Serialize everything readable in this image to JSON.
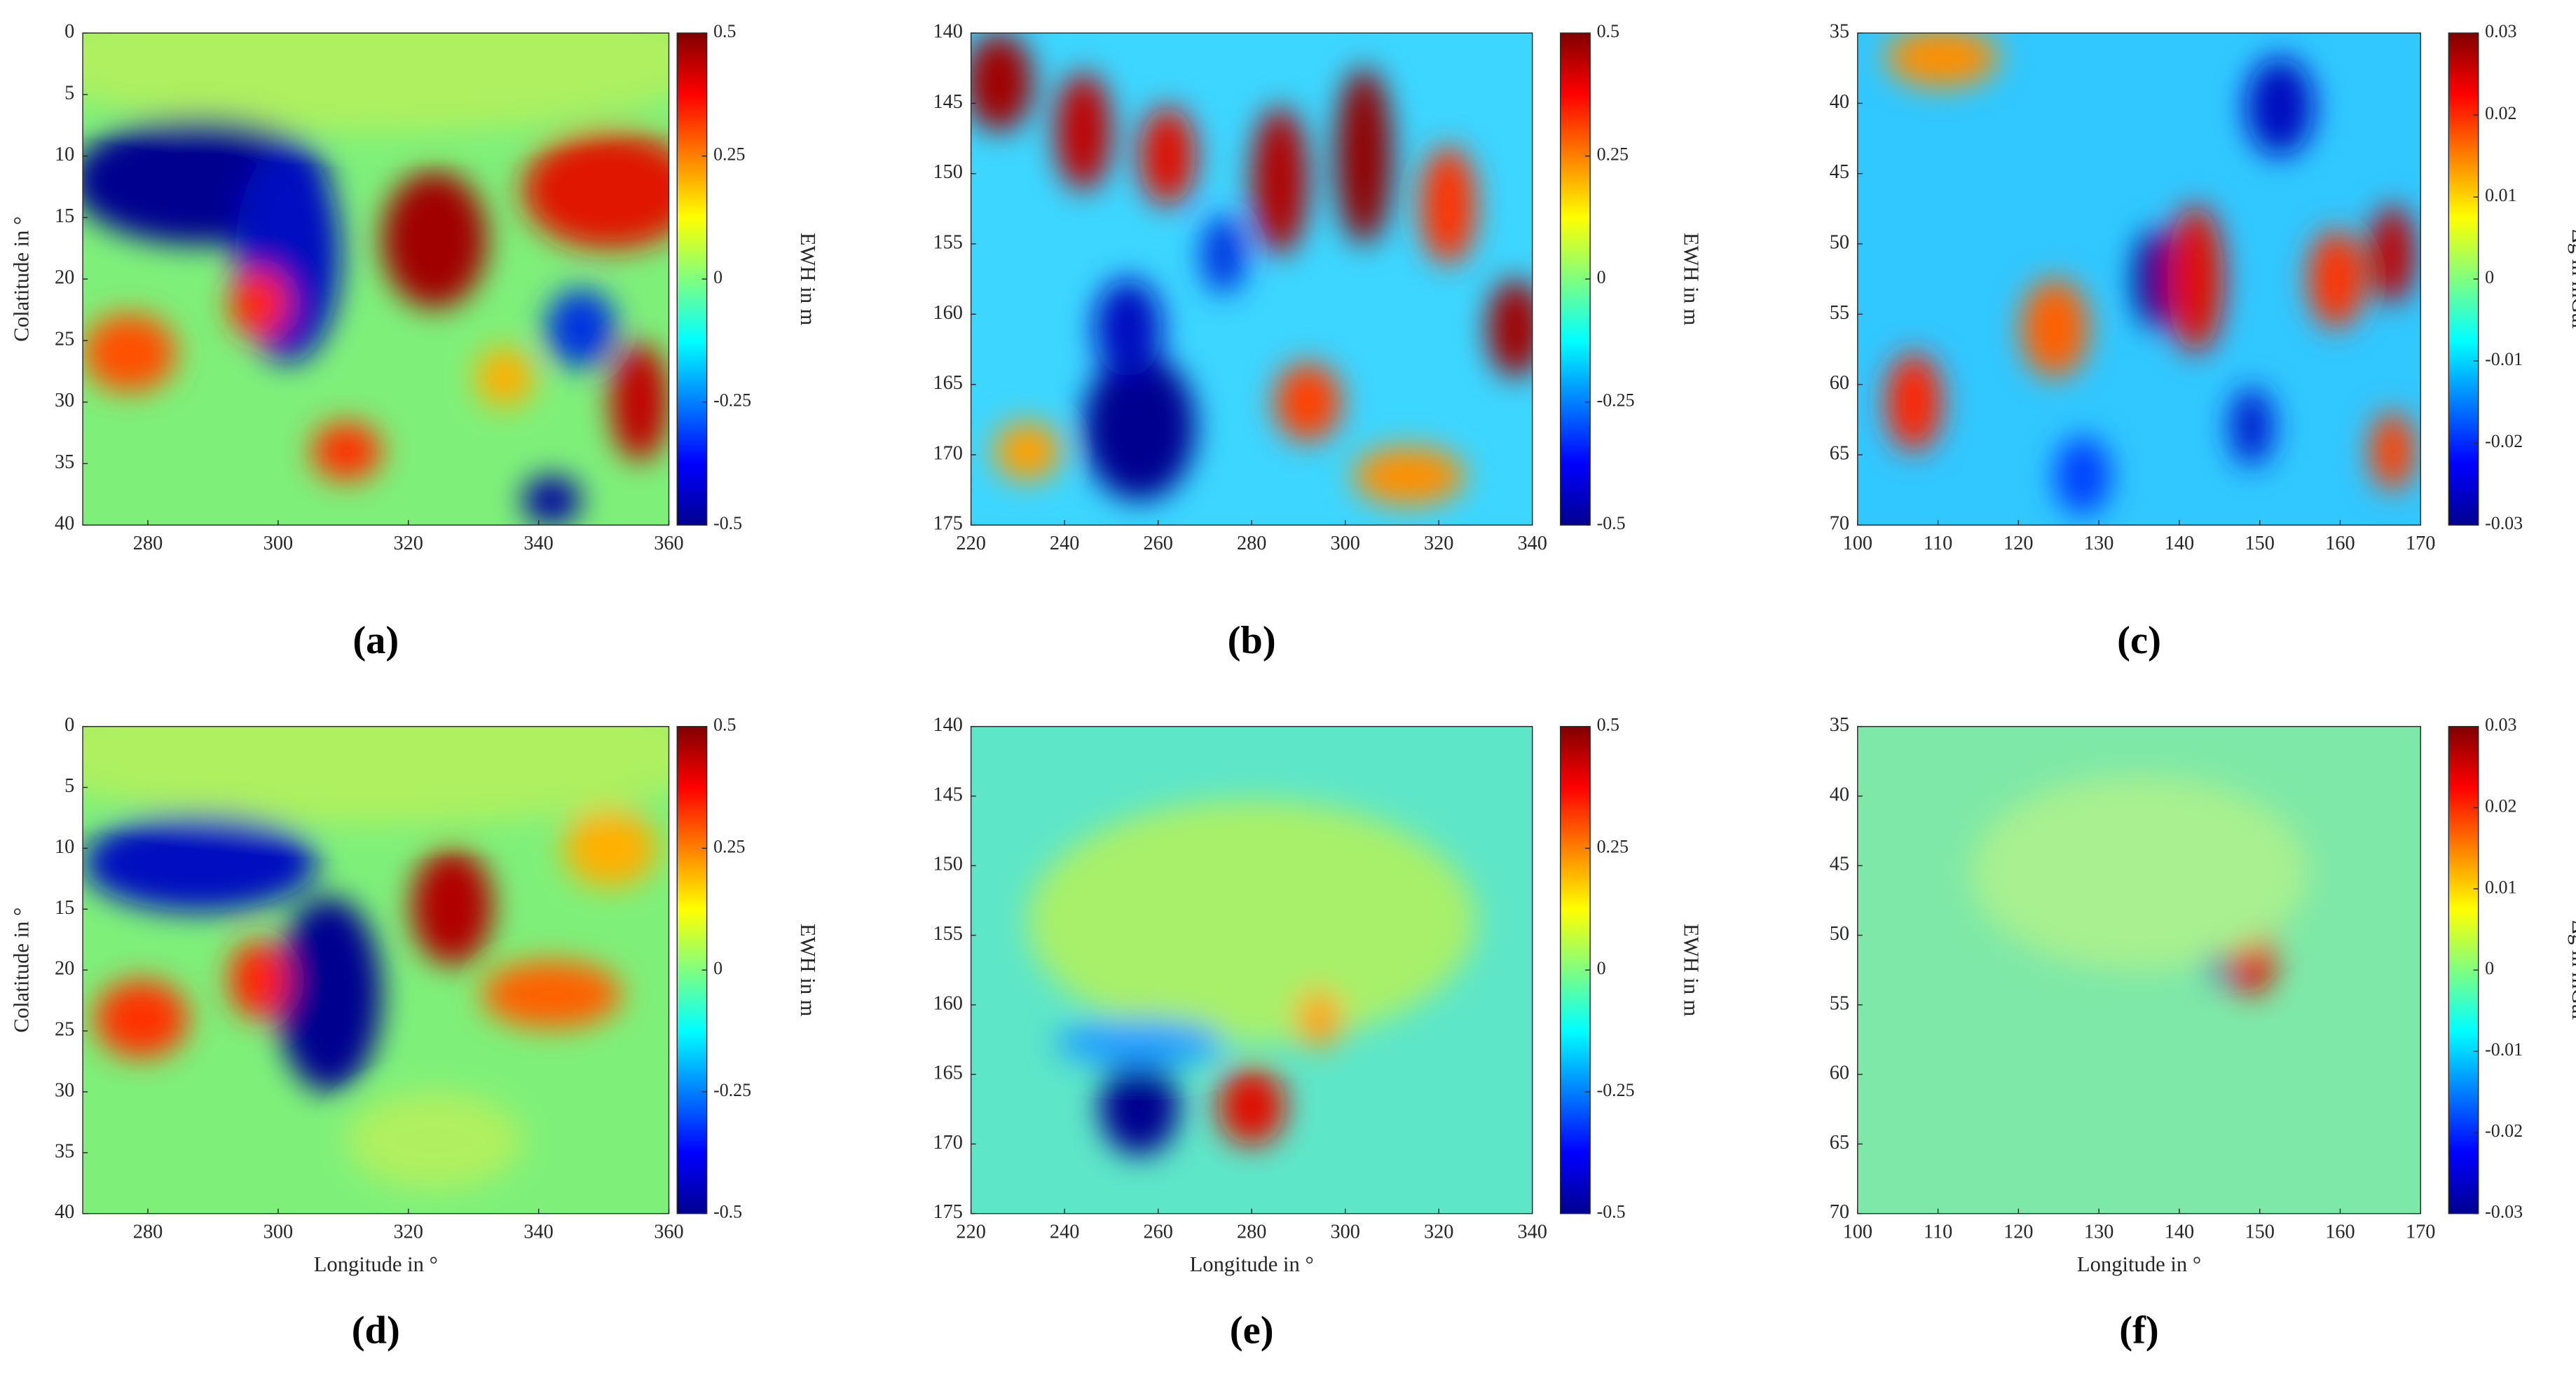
{
  "chart_data": [
    {
      "type": "heatmap",
      "panel_label": "(a)",
      "ylabel": "Colatitude in °",
      "xlim": [
        270,
        360
      ],
      "xticks": [
        280,
        300,
        320,
        340,
        360
      ],
      "ylim": [
        0,
        40
      ],
      "yticks": [
        0,
        5,
        10,
        15,
        20,
        25,
        30,
        35,
        40
      ],
      "y_direction": "reverse",
      "colormap": "jet",
      "colorbar": {
        "label": "EWH in m",
        "lim": [
          -0.5,
          0.5
        ],
        "ticks": [
          -0.5,
          -0.25,
          0,
          0.25,
          0.5
        ]
      }
    },
    {
      "type": "heatmap",
      "panel_label": "(b)",
      "xlim": [
        220,
        340
      ],
      "xticks": [
        220,
        240,
        260,
        280,
        300,
        320,
        340
      ],
      "ylim": [
        140,
        175
      ],
      "yticks": [
        140,
        145,
        150,
        155,
        160,
        165,
        170,
        175
      ],
      "y_direction": "reverse",
      "colormap": "jet",
      "colorbar": {
        "label": "EWH in m",
        "lim": [
          -0.5,
          0.5
        ],
        "ticks": [
          -0.5,
          -0.25,
          0,
          0.25,
          0.5
        ]
      }
    },
    {
      "type": "heatmap",
      "panel_label": "(c)",
      "xlim": [
        100,
        170
      ],
      "xticks": [
        100,
        110,
        120,
        130,
        140,
        150,
        160,
        170
      ],
      "ylim": [
        35,
        70
      ],
      "yticks": [
        35,
        40,
        45,
        50,
        55,
        60,
        65,
        70
      ],
      "y_direction": "reverse",
      "colormap": "jet",
      "colorbar": {
        "label": "Δg in mGal",
        "lim": [
          -0.03,
          0.03
        ],
        "ticks": [
          -0.03,
          -0.02,
          -0.01,
          0,
          0.01,
          0.02,
          0.03
        ]
      }
    },
    {
      "type": "heatmap",
      "panel_label": "(d)",
      "xlabel": "Longitude in °",
      "ylabel": "Colatitude in °",
      "xlim": [
        270,
        360
      ],
      "xticks": [
        280,
        300,
        320,
        340,
        360
      ],
      "ylim": [
        0,
        40
      ],
      "yticks": [
        0,
        5,
        10,
        15,
        20,
        25,
        30,
        35,
        40
      ],
      "y_direction": "reverse",
      "colormap": "jet",
      "colorbar": {
        "label": "EWH in m",
        "lim": [
          -0.5,
          0.5
        ],
        "ticks": [
          -0.5,
          -0.25,
          0,
          0.25,
          0.5
        ]
      }
    },
    {
      "type": "heatmap",
      "panel_label": "(e)",
      "xlabel": "Longitude in °",
      "xlim": [
        220,
        340
      ],
      "xticks": [
        220,
        240,
        260,
        280,
        300,
        320,
        340
      ],
      "ylim": [
        140,
        175
      ],
      "yticks": [
        140,
        145,
        150,
        155,
        160,
        165,
        170,
        175
      ],
      "y_direction": "reverse",
      "colormap": "jet",
      "colorbar": {
        "label": "EWH in m",
        "lim": [
          -0.5,
          0.5
        ],
        "ticks": [
          -0.5,
          -0.25,
          0,
          0.25,
          0.5
        ]
      }
    },
    {
      "type": "heatmap",
      "panel_label": "(f)",
      "xlabel": "Longitude in °",
      "xlim": [
        100,
        170
      ],
      "xticks": [
        100,
        110,
        120,
        130,
        140,
        150,
        160,
        170
      ],
      "ylim": [
        35,
        70
      ],
      "yticks": [
        35,
        40,
        45,
        50,
        55,
        60,
        65,
        70
      ],
      "y_direction": "reverse",
      "colormap": "jet",
      "colorbar": {
        "label": "Δg in mGal",
        "lim": [
          -0.03,
          0.03
        ],
        "ticks": [
          -0.03,
          -0.02,
          -0.01,
          0,
          0.01,
          0.02,
          0.03
        ]
      }
    }
  ]
}
